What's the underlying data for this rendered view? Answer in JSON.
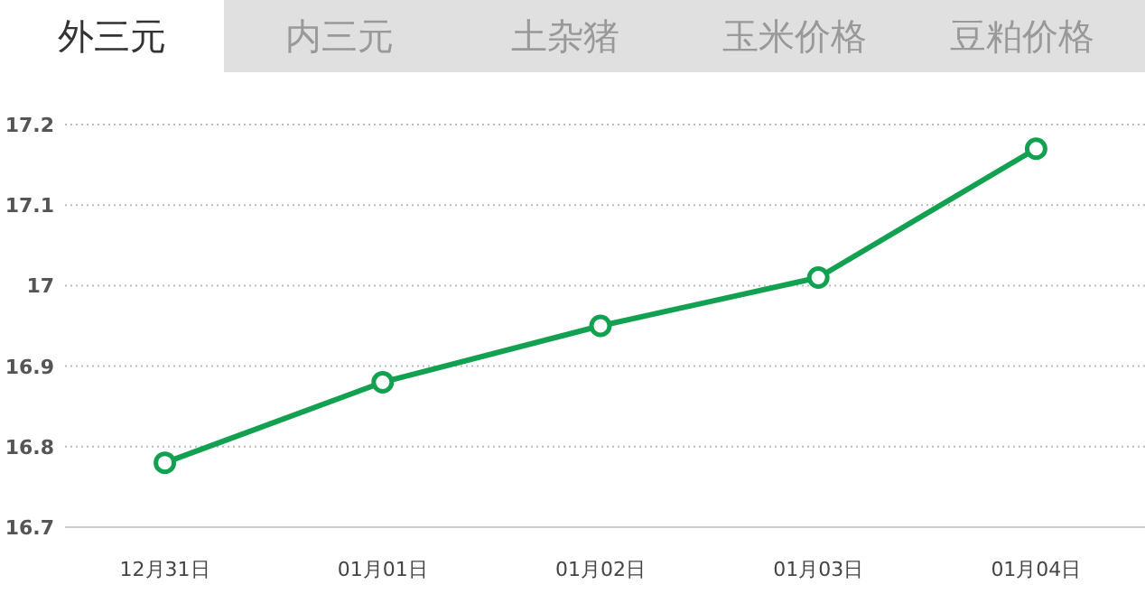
{
  "chart_data": {
    "type": "line",
    "title": "外三元",
    "annotations": [
      "内三元",
      "土杂猪",
      "玉米价格",
      "豆粕价格"
    ],
    "categories": [
      "12月31日",
      "01月01日",
      "01月02日",
      "01月03日",
      "01月04日"
    ],
    "series": [
      {
        "color": "#12a150",
        "values": [
          16.78,
          16.88,
          16.95,
          17.01,
          17.17
        ]
      }
    ],
    "ylim": [
      16.7,
      17.2
    ],
    "yticks": [
      16.7,
      16.8,
      16.9,
      17,
      17.1,
      17.2
    ],
    "grid": "y",
    "marker": "circle",
    "line_style": "solid"
  }
}
